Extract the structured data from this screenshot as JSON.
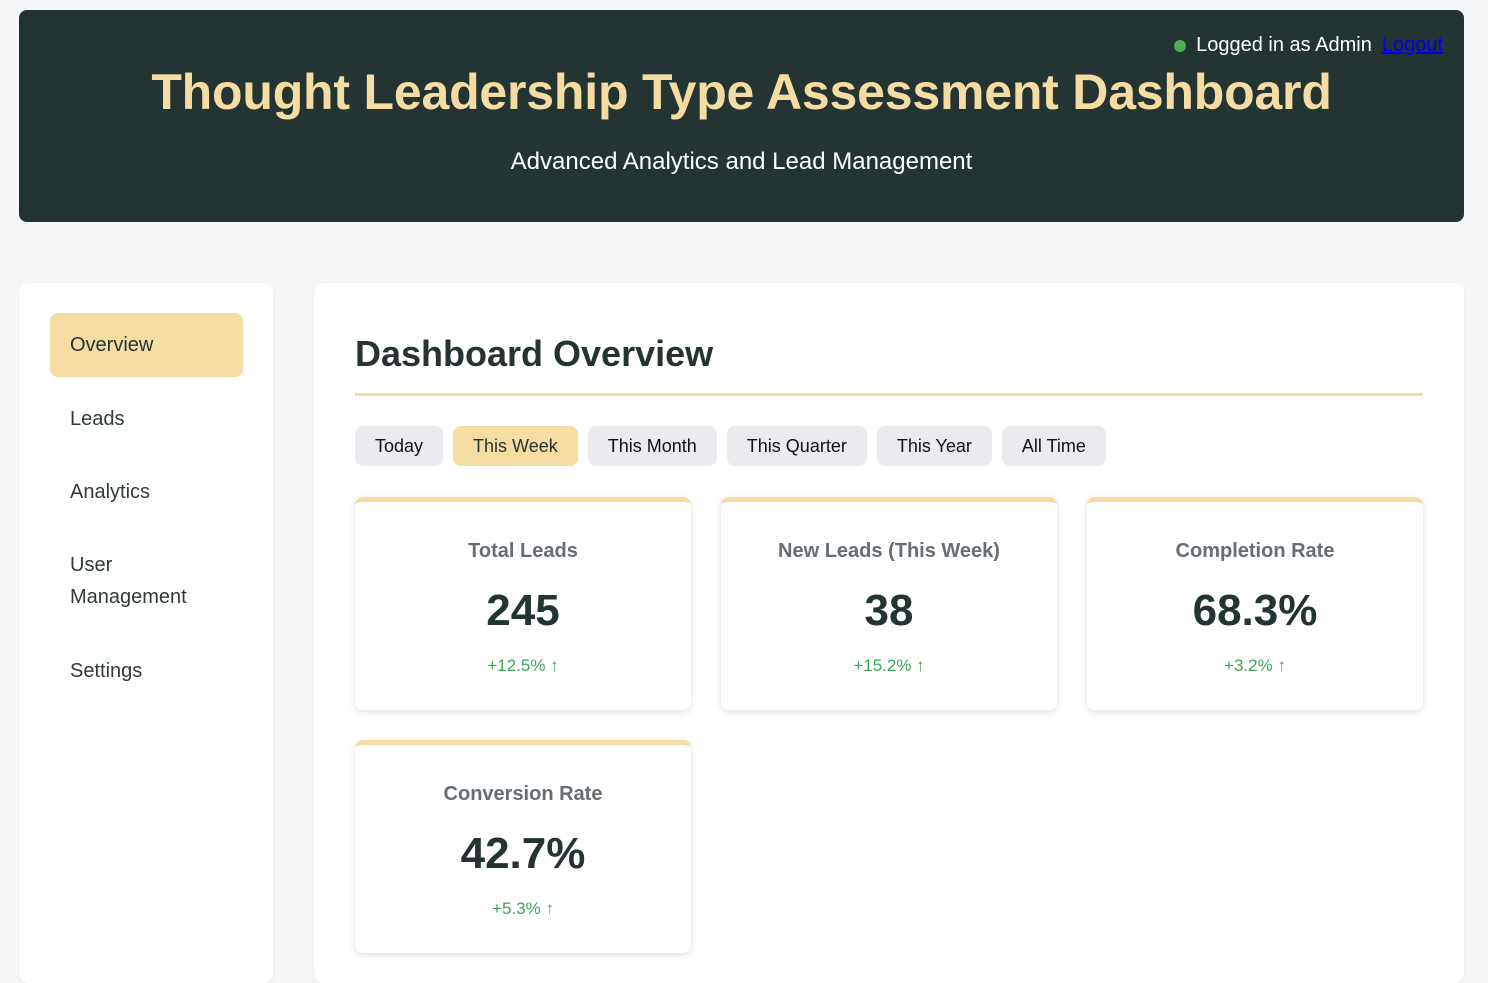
{
  "header": {
    "title": "Thought Leadership Type Assessment Dashboard",
    "subtitle": "Advanced Analytics and Lead Management",
    "login_text": "Logged in as Admin",
    "logout_label": "Logout",
    "status_color": "#4caf50"
  },
  "sidebar": {
    "items": [
      {
        "label": "Overview",
        "active": true
      },
      {
        "label": "Leads",
        "active": false
      },
      {
        "label": "Analytics",
        "active": false
      },
      {
        "label": "User Management",
        "active": false
      },
      {
        "label": "Settings",
        "active": false
      }
    ]
  },
  "main": {
    "title": "Dashboard Overview",
    "filters": [
      {
        "label": "Today",
        "active": false
      },
      {
        "label": "This Week",
        "active": true
      },
      {
        "label": "This Month",
        "active": false
      },
      {
        "label": "This Quarter",
        "active": false
      },
      {
        "label": "This Year",
        "active": false
      },
      {
        "label": "All Time",
        "active": false
      }
    ],
    "cards": [
      {
        "label": "Total Leads",
        "value": "245",
        "change": "+12.5% ↑"
      },
      {
        "label": "New Leads (This Week)",
        "value": "38",
        "change": "+15.2% ↑"
      },
      {
        "label": "Completion Rate",
        "value": "68.3%",
        "change": "+3.2% ↑"
      },
      {
        "label": "Conversion Rate",
        "value": "42.7%",
        "change": "+5.3% ↑"
      }
    ]
  },
  "colors": {
    "header_bg": "#243433",
    "accent": "#f5dca3",
    "positive": "#3aa856"
  }
}
